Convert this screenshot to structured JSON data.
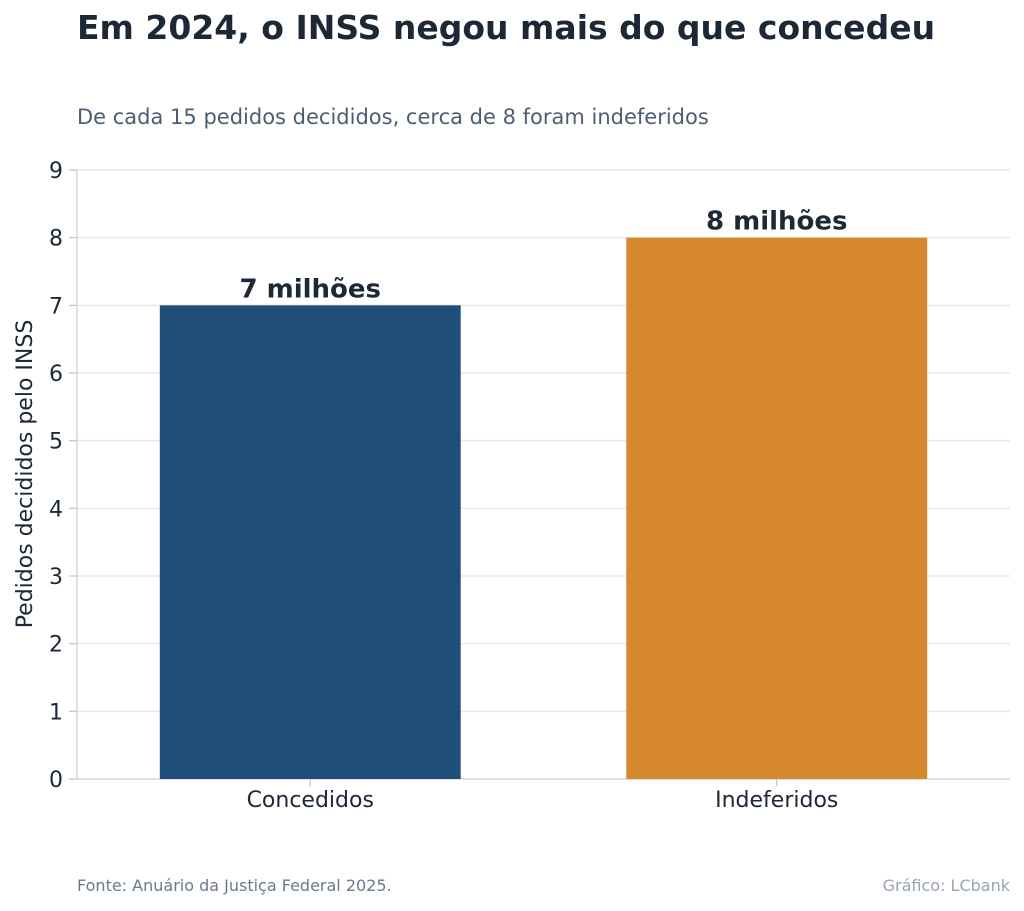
{
  "header": {
    "title": "Em 2024, o INSS negou mais do que concedeu",
    "subtitle": "De cada 15 pedidos decididos, cerca de 8 foram indeferidos"
  },
  "footer": {
    "source": "Fonte: Anuário da Justiça Federal 2025.",
    "credit": "Gráfico: LCbank"
  },
  "chart_data": {
    "type": "bar",
    "title": "Em 2024, o INSS negou mais do que concedeu",
    "subtitle": "De cada 15 pedidos decididos, cerca de 8 foram indeferidos",
    "categories": [
      "Concedidos",
      "Indeferidos"
    ],
    "values": [
      7,
      8
    ],
    "data_labels": [
      "7 milhões",
      "8 milhões"
    ],
    "colors": [
      "#1f4e79",
      "#d6892c"
    ],
    "xlabel": "",
    "ylabel": "Pedidos decididos pelo INSS",
    "ylim": [
      0,
      9
    ],
    "yticks": [
      0,
      1,
      2,
      3,
      4,
      5,
      6,
      7,
      8,
      9
    ],
    "grid": true,
    "grid_axis": "y"
  }
}
